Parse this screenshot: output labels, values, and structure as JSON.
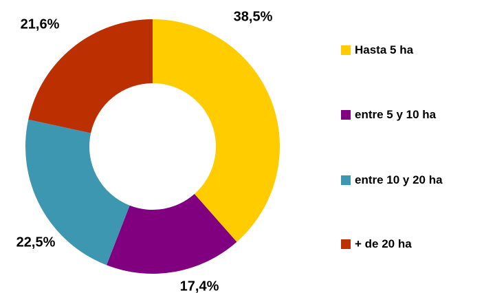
{
  "chart_data": {
    "type": "pie",
    "donut": true,
    "categories": [
      "Hasta 5 ha",
      "entre 5 y 10 ha",
      "entre 10 y 20 ha",
      "+ de 20 ha"
    ],
    "values": [
      38.5,
      17.4,
      22.5,
      21.6
    ],
    "value_labels": [
      "38,5%",
      "17,4%",
      "22,5%",
      "21,6%"
    ],
    "colors": [
      "#FFCC00",
      "#800080",
      "#3D97B0",
      "#BB2F00"
    ],
    "legend_placement": "right"
  }
}
